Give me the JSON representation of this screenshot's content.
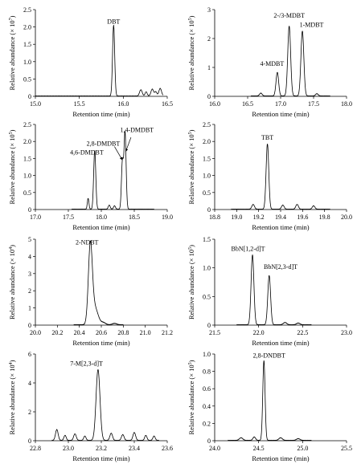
{
  "figure": {
    "panel_count": 8
  },
  "chart_data": [
    {
      "type": "line",
      "xlabel": "Retention time (min)",
      "ylabel": "Relative abundance",
      "yscale_label": "(× 10",
      "yscale_exp": "7",
      "yscale_close": ")",
      "xlim": [
        15.0,
        16.5
      ],
      "ylim": [
        0,
        2.5
      ],
      "xticks": [
        15.0,
        15.5,
        16.0,
        16.5
      ],
      "xtick_labels": [
        "15.0",
        "15.5",
        "16.0",
        "16.5"
      ],
      "yticks": [
        0,
        0.5,
        1.0,
        1.5,
        2.0,
        2.5
      ],
      "ytick_labels": [
        "0",
        "0.5",
        "1.0",
        "1.5",
        "2.0",
        "2.5"
      ],
      "trace_range": [
        15.0,
        16.45
      ],
      "peaks": [
        {
          "x": 15.89,
          "height": 2.05,
          "width": 0.012
        },
        {
          "x": 16.2,
          "height": 0.18,
          "width": 0.015
        },
        {
          "x": 16.26,
          "height": 0.12,
          "width": 0.012
        },
        {
          "x": 16.33,
          "height": 0.2,
          "width": 0.015
        },
        {
          "x": 16.37,
          "height": 0.12,
          "width": 0.012
        },
        {
          "x": 16.42,
          "height": 0.22,
          "width": 0.015
        }
      ],
      "annotations": [
        {
          "text": "DBT",
          "x": 15.89,
          "y": 2.1
        }
      ]
    },
    {
      "type": "line",
      "xlabel": "Retention time (min)",
      "ylabel": "Relative abundance",
      "yscale_label": "(× 10",
      "yscale_exp": "5",
      "yscale_close": ")",
      "xlim": [
        16.0,
        18.0
      ],
      "ylim": [
        0,
        3
      ],
      "xticks": [
        16.0,
        16.5,
        17.0,
        17.5,
        18.0
      ],
      "xtick_labels": [
        "16.0",
        "16.5",
        "17.0",
        "17.5",
        "18.0"
      ],
      "yticks": [
        0,
        1,
        2,
        3
      ],
      "ytick_labels": [
        "0",
        "1",
        "2",
        "3"
      ],
      "trace_range": [
        16.55,
        17.75
      ],
      "peaks": [
        {
          "x": 16.95,
          "height": 0.82,
          "width": 0.02
        },
        {
          "x": 17.13,
          "height": 2.42,
          "width": 0.022
        },
        {
          "x": 17.33,
          "height": 2.25,
          "width": 0.022
        },
        {
          "x": 16.7,
          "height": 0.1,
          "width": 0.02
        },
        {
          "x": 17.55,
          "height": 0.08,
          "width": 0.02
        }
      ],
      "annotations": [
        {
          "text": "2-/3-MDBT",
          "x": 17.13,
          "y": 2.72
        },
        {
          "text": "1-MDBT",
          "x": 17.47,
          "y": 2.4
        },
        {
          "text": "4-MDBT",
          "x": 16.87,
          "y": 1.05
        }
      ]
    },
    {
      "type": "line",
      "xlabel": "Retention time (min)",
      "ylabel": "Relative abundance",
      "yscale_label": "(× 10",
      "yscale_exp": "5",
      "yscale_close": ")",
      "xlim": [
        17.0,
        19.0
      ],
      "ylim": [
        0,
        2.5
      ],
      "xticks": [
        17.0,
        17.5,
        18.0,
        18.5,
        19.0
      ],
      "xtick_labels": [
        "17.0",
        "17.5",
        "18.0",
        "18.5",
        "19.0"
      ],
      "yticks": [
        0,
        0.5,
        1.0,
        1.5,
        2.0,
        2.5
      ],
      "ytick_labels": [
        "0",
        "0.5",
        "1.0",
        "1.5",
        "2.0",
        "2.5"
      ],
      "trace_range": [
        17.55,
        18.8
      ],
      "peaks": [
        {
          "x": 17.9,
          "height": 1.72,
          "width": 0.016
        },
        {
          "x": 17.8,
          "height": 0.32,
          "width": 0.012
        },
        {
          "x": 18.32,
          "height": 1.38,
          "width": 0.015
        },
        {
          "x": 18.36,
          "height": 2.25,
          "width": 0.016
        },
        {
          "x": 18.12,
          "height": 0.12,
          "width": 0.015
        },
        {
          "x": 18.2,
          "height": 0.1,
          "width": 0.015
        }
      ],
      "annotations": [
        {
          "text": "1,4-DMDBT",
          "x": 18.54,
          "y": 2.28
        },
        {
          "text": "2,8-DMDBT",
          "x": 18.03,
          "y": 1.87
        },
        {
          "text": "4,6-DMDBT",
          "x": 17.78,
          "y": 1.62
        }
      ],
      "arrows": [
        {
          "from": [
            18.45,
            2.12
          ],
          "to": [
            18.37,
            1.7
          ]
        },
        {
          "from": [
            18.2,
            1.85
          ],
          "to": [
            18.32,
            1.45
          ]
        }
      ]
    },
    {
      "type": "line",
      "xlabel": "Retention time (min)",
      "ylabel": "Relative abundance",
      "yscale_label": "(× 10",
      "yscale_exp": "5",
      "yscale_close": ")",
      "xlim": [
        18.8,
        20.0
      ],
      "ylim": [
        0,
        2.5
      ],
      "xticks": [
        18.8,
        19.0,
        19.2,
        19.4,
        19.6,
        19.8,
        20.0
      ],
      "xtick_labels": [
        "18.8",
        "19.0",
        "19.2",
        "19.4",
        "19.6",
        "19.8",
        "20.0"
      ],
      "yticks": [
        0,
        0.5,
        1.0,
        1.5,
        2.0,
        2.5
      ],
      "ytick_labels": [
        "0",
        "0.5",
        "1.0",
        "1.5",
        "2.0",
        "2.5"
      ],
      "trace_range": [
        18.95,
        19.85
      ],
      "peaks": [
        {
          "x": 19.28,
          "height": 1.92,
          "width": 0.012
        },
        {
          "x": 19.15,
          "height": 0.14,
          "width": 0.012
        },
        {
          "x": 19.42,
          "height": 0.12,
          "width": 0.012
        },
        {
          "x": 19.55,
          "height": 0.14,
          "width": 0.012
        },
        {
          "x": 19.7,
          "height": 0.1,
          "width": 0.012
        }
      ],
      "annotations": [
        {
          "text": "TBT",
          "x": 19.28,
          "y": 2.05
        }
      ]
    },
    {
      "type": "line",
      "xlabel": "Retention time (min)",
      "ylabel": "Relative abundance",
      "yscale_label": "(× 10",
      "yscale_exp": "4",
      "yscale_close": ")",
      "xlim": [
        20.0,
        21.2
      ],
      "ylim": [
        0,
        5
      ],
      "xticks": [
        20.0,
        20.2,
        20.4,
        20.6,
        20.8,
        21.0,
        21.2
      ],
      "xtick_labels": [
        "20.0",
        "20.2",
        "20.4",
        "20.6",
        "20.8",
        "21.0",
        "21.2"
      ],
      "yticks": [
        0,
        1,
        2,
        3,
        4,
        5
      ],
      "ytick_labels": [
        "0",
        "1",
        "2",
        "3",
        "4",
        "5"
      ],
      "trace_range": [
        20.35,
        20.8
      ],
      "peaks": [
        {
          "x": 20.5,
          "height": 4.45,
          "width": 0.018
        },
        {
          "x": 20.54,
          "height": 1.0,
          "width": 0.03
        },
        {
          "x": 20.62,
          "height": 0.12,
          "width": 0.02
        },
        {
          "x": 20.72,
          "height": 0.08,
          "width": 0.02
        }
      ],
      "annotations": [
        {
          "text": "2-NDBT",
          "x": 20.47,
          "y": 4.7
        }
      ]
    },
    {
      "type": "line",
      "xlabel": "Retention time (min)",
      "ylabel": "Relative abundance",
      "yscale_label": "(× 10",
      "yscale_exp": "5",
      "yscale_close": ")",
      "xlim": [
        21.5,
        23.0
      ],
      "ylim": [
        0,
        1.5
      ],
      "xticks": [
        21.5,
        22.0,
        22.5,
        23.0
      ],
      "xtick_labels": [
        "21.5",
        "22.0",
        "22.5",
        "23.0"
      ],
      "yticks": [
        0,
        0.5,
        1.0,
        1.5
      ],
      "ytick_labels": [
        "0",
        "0.5",
        "1.0",
        "1.5"
      ],
      "trace_range": [
        21.75,
        22.6
      ],
      "peaks": [
        {
          "x": 21.93,
          "height": 1.22,
          "width": 0.016
        },
        {
          "x": 22.12,
          "height": 0.86,
          "width": 0.016
        },
        {
          "x": 22.3,
          "height": 0.04,
          "width": 0.02
        },
        {
          "x": 22.45,
          "height": 0.03,
          "width": 0.02
        }
      ],
      "annotations": [
        {
          "text": "BbN[1,2-d]T",
          "x": 21.88,
          "y": 1.3
        },
        {
          "text": "BbN[2,3-d]T",
          "x": 22.25,
          "y": 0.98
        }
      ]
    },
    {
      "type": "line",
      "xlabel": "Retention time (min)",
      "ylabel": "Relative abundance",
      "yscale_label": "(× 10",
      "yscale_exp": "4",
      "yscale_close": ")",
      "xlim": [
        22.8,
        23.6
      ],
      "ylim": [
        0,
        6
      ],
      "xticks": [
        22.8,
        23.0,
        23.2,
        23.4,
        23.6
      ],
      "xtick_labels": [
        "22.8",
        "23.0",
        "23.2",
        "23.4",
        "23.6"
      ],
      "yticks": [
        0,
        2,
        4,
        6
      ],
      "ytick_labels": [
        "0",
        "2",
        "4",
        "6"
      ],
      "trace_range": [
        22.9,
        23.55
      ],
      "peaks": [
        {
          "x": 23.18,
          "height": 4.9,
          "width": 0.012
        },
        {
          "x": 22.93,
          "height": 0.75,
          "width": 0.008
        },
        {
          "x": 22.98,
          "height": 0.35,
          "width": 0.007
        },
        {
          "x": 23.04,
          "height": 0.45,
          "width": 0.008
        },
        {
          "x": 23.1,
          "height": 0.3,
          "width": 0.007
        },
        {
          "x": 23.26,
          "height": 0.5,
          "width": 0.008
        },
        {
          "x": 23.33,
          "height": 0.4,
          "width": 0.008
        },
        {
          "x": 23.4,
          "height": 0.55,
          "width": 0.008
        },
        {
          "x": 23.47,
          "height": 0.35,
          "width": 0.007
        },
        {
          "x": 23.52,
          "height": 0.3,
          "width": 0.007
        }
      ],
      "annotations": [
        {
          "text": "7-M[2,3-d]T",
          "x": 23.11,
          "y": 5.2
        }
      ]
    },
    {
      "type": "line",
      "xlabel": "Retention time (min)",
      "ylabel": "Relative abundance",
      "yscale_label": "(× 10",
      "yscale_exp": "5",
      "yscale_close": ")",
      "xlim": [
        24.0,
        25.5
      ],
      "ylim": [
        0,
        1.0
      ],
      "xticks": [
        24.0,
        24.5,
        25.0,
        25.5
      ],
      "xtick_labels": [
        "24.0",
        "24.5",
        "25.0",
        "25.5"
      ],
      "yticks": [
        0,
        0.2,
        0.4,
        0.6,
        0.8,
        1.0
      ],
      "ytick_labels": [
        "0",
        "0.2",
        "0.4",
        "0.6",
        "0.8",
        "1.0"
      ],
      "trace_range": [
        24.15,
        25.1
      ],
      "peaks": [
        {
          "x": 24.56,
          "height": 0.92,
          "width": 0.013
        },
        {
          "x": 24.3,
          "height": 0.03,
          "width": 0.02
        },
        {
          "x": 24.45,
          "height": 0.04,
          "width": 0.015
        },
        {
          "x": 24.75,
          "height": 0.03,
          "width": 0.02
        },
        {
          "x": 24.95,
          "height": 0.02,
          "width": 0.02
        }
      ],
      "annotations": [
        {
          "text": "2,8-DNDBT",
          "x": 24.62,
          "y": 0.96
        }
      ]
    }
  ]
}
